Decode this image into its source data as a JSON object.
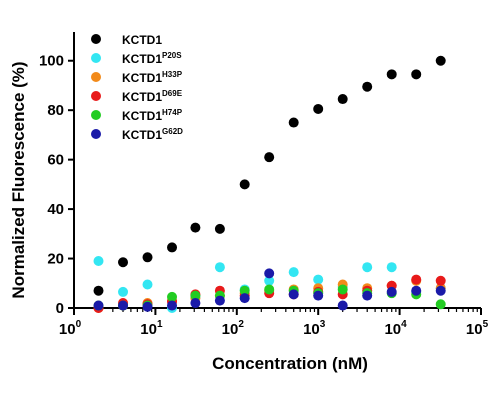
{
  "chart_data": {
    "type": "scatter",
    "xlabel": "Concentration (nM)",
    "ylabel": "Normalized Fluorescence (%)",
    "xscale": "log",
    "xlim": [
      1,
      100000
    ],
    "ylim": [
      0,
      110
    ],
    "x_ticks": [
      {
        "base": "10",
        "exp": "0",
        "value": 1
      },
      {
        "base": "10",
        "exp": "1",
        "value": 10
      },
      {
        "base": "10",
        "exp": "2",
        "value": 100
      },
      {
        "base": "10",
        "exp": "3",
        "value": 1000
      },
      {
        "base": "10",
        "exp": "4",
        "value": 10000
      },
      {
        "base": "10",
        "exp": "5",
        "value": 100000
      }
    ],
    "y_ticks": [
      0,
      20,
      40,
      60,
      80,
      100
    ],
    "legend_position": "top-left",
    "series": [
      {
        "name": "KCTD1",
        "name_sup": "",
        "color": "#000000",
        "x": [
          2,
          4,
          8,
          16,
          31,
          62,
          125,
          250,
          500,
          1000,
          2000,
          4000,
          8000,
          16000,
          32000
        ],
        "y": [
          7,
          18.5,
          20.5,
          24.5,
          32.5,
          32,
          50,
          61,
          75,
          80.5,
          84.5,
          89.5,
          94.5,
          94.5,
          100
        ]
      },
      {
        "name": "KCTD1",
        "name_sup": "P20S",
        "color": "#33e6f2",
        "x": [
          2,
          4,
          8,
          16,
          31,
          62,
          125,
          250,
          500,
          1000,
          2000,
          4000,
          8000,
          16000,
          32000
        ],
        "y": [
          19,
          6.5,
          9.5,
          0,
          4.5,
          16.5,
          7.5,
          11,
          14.5,
          11.5,
          8.5,
          16.5,
          16.5,
          6.5,
          8
        ]
      },
      {
        "name": "KCTD1",
        "name_sup": "H33P",
        "color": "#f28a1a",
        "x": [
          2,
          4,
          8,
          16,
          31,
          62,
          125,
          250,
          500,
          1000,
          2000,
          4000,
          8000,
          16000,
          32000
        ],
        "y": [
          0,
          1,
          2,
          3,
          4,
          5,
          6,
          7,
          7.5,
          8,
          9.5,
          8,
          9,
          11,
          8
        ]
      },
      {
        "name": "KCTD1",
        "name_sup": "D69E",
        "color": "#e81a1a",
        "x": [
          2,
          4,
          8,
          16,
          31,
          62,
          125,
          250,
          500,
          1000,
          2000,
          4000,
          8000,
          16000,
          32000
        ],
        "y": [
          0,
          2,
          1.5,
          2.5,
          5.5,
          7,
          5,
          6,
          5.5,
          6.5,
          5.5,
          7,
          9,
          11.5,
          11
        ]
      },
      {
        "name": "KCTD1",
        "name_sup": "H74P",
        "color": "#22cc22",
        "x": [
          2,
          4,
          8,
          16,
          31,
          62,
          125,
          250,
          500,
          1000,
          2000,
          4000,
          8000,
          16000,
          32000
        ],
        "y": [
          1,
          1,
          1,
          4.5,
          5,
          5,
          7,
          7.5,
          7,
          6,
          7.5,
          6,
          6,
          5.5,
          1.5
        ]
      },
      {
        "name": "KCTD1",
        "name_sup": "G62D",
        "color": "#1a1aa8",
        "x": [
          2,
          4,
          8,
          16,
          31,
          62,
          125,
          250,
          500,
          1000,
          2000,
          4000,
          8000,
          16000,
          32000
        ],
        "y": [
          1,
          1,
          0.5,
          1,
          2,
          3,
          4,
          14,
          5.5,
          5,
          1,
          5,
          6.5,
          7,
          7
        ]
      }
    ]
  }
}
